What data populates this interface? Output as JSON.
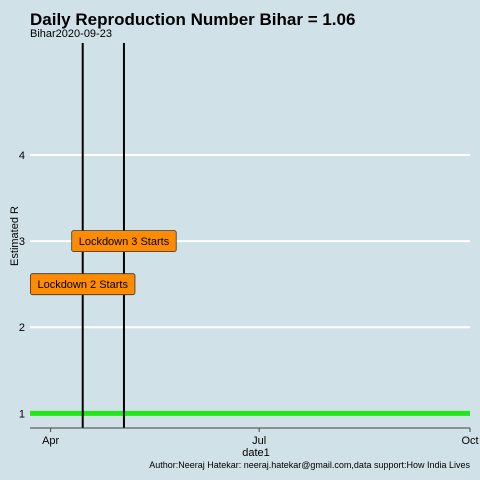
{
  "chart_data": {
    "type": "line",
    "title": "Daily Reproduction Number Bihar = 1.06",
    "subtitle": "Bihar2020-09-23",
    "xlabel": "date1",
    "ylabel": "Estimated R",
    "caption": "Author:Neeraj Hatekar: neeraj.hatekar@gmail.com,data support:How India Lives",
    "xlim": [
      "2020-03-23",
      "2020-10-01"
    ],
    "ylim": [
      0.83,
      5.3
    ],
    "x_ticks": [
      {
        "date": "2020-04-01",
        "label": "Apr"
      },
      {
        "date": "2020-07-01",
        "label": "Jul"
      },
      {
        "date": "2020-10-01",
        "label": "Oct"
      }
    ],
    "y_ticks": [
      1,
      2,
      3,
      4
    ],
    "grid": true,
    "reference_line": {
      "y": 1,
      "color": "#22e61a"
    },
    "vlines": [
      {
        "date": "2020-04-15",
        "color": "#000000"
      },
      {
        "date": "2020-05-03",
        "color": "#000000"
      }
    ],
    "annotations": [
      {
        "label": "Lockdown 2 Starts",
        "date": "2020-04-15",
        "y": 2.5,
        "fill": "#ff8c00"
      },
      {
        "label": "Lockdown 3 Starts",
        "date": "2020-05-03",
        "y": 3.0,
        "fill": "#ff8c00"
      }
    ],
    "series": []
  }
}
